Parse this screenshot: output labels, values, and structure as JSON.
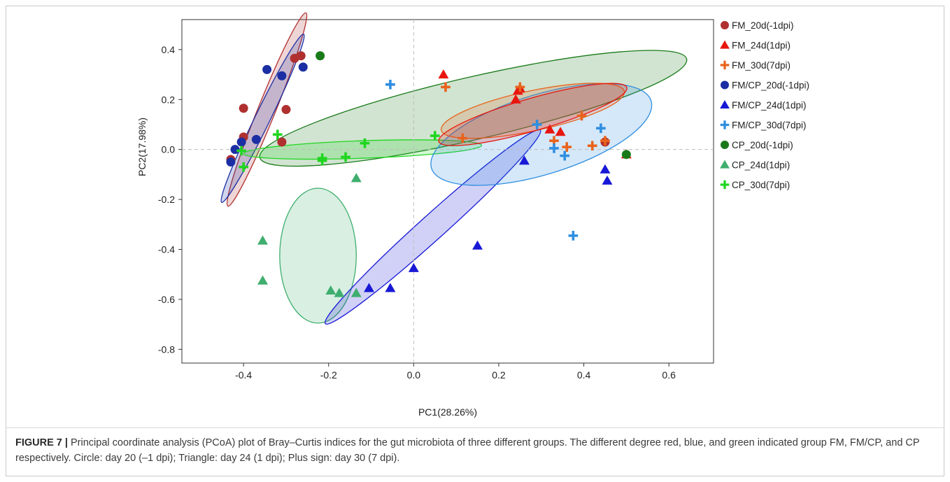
{
  "caption": {
    "label": "FIGURE 7 |",
    "text": " Principal coordinate analysis (PCoA) plot of Bray–Curtis indices for the gut microbiota of three different groups. The different degree red, blue, and green indicated group FM, FM/CP, and CP respectively. Circle: day 20 (–1 dpi); Triangle: day 24 (1 dpi); Plus sign: day 30 (7 dpi)."
  },
  "chart_data": {
    "type": "scatter",
    "xlabel": "PC1(28.26%)",
    "ylabel": "PC2(17.98%)",
    "xlim": [
      -0.545,
      0.705
    ],
    "ylim": [
      -0.855,
      0.52
    ],
    "xticks": [
      -0.4,
      -0.2,
      0.0,
      0.2,
      0.4,
      0.6
    ],
    "xtick_labels": [
      "-0.4",
      "-0.2",
      "0.0",
      "0.2",
      "0.4",
      "0.6"
    ],
    "yticks": [
      -0.8,
      -0.6,
      -0.4,
      -0.2,
      0.0,
      0.2,
      0.4
    ],
    "ytick_labels": [
      "-0.8",
      "-0.6",
      "-0.4",
      "-0.2",
      "0.0",
      "0.2",
      "0.4"
    ],
    "reference_lines": {
      "x": 0,
      "y": 0,
      "style": "dashed"
    },
    "grid": false,
    "legend_position": "right, outside plot",
    "series": [
      {
        "name": "FM_20d(-1dpi)",
        "marker": "circle",
        "color": "#b03030",
        "points": [
          [
            -0.43,
            -0.04
          ],
          [
            -0.4,
            0.05
          ],
          [
            -0.4,
            0.165
          ],
          [
            -0.31,
            0.03
          ],
          [
            -0.3,
            0.16
          ],
          [
            -0.28,
            0.365
          ],
          [
            -0.265,
            0.375
          ],
          [
            0.45,
            0.03
          ]
        ]
      },
      {
        "name": "FM_24d(1dpi)",
        "marker": "triangle",
        "color": "#e8160f",
        "points": [
          [
            0.07,
            0.3
          ],
          [
            0.24,
            0.2
          ],
          [
            0.245,
            0.235
          ],
          [
            0.25,
            0.245
          ],
          [
            0.32,
            0.08
          ],
          [
            0.345,
            0.07
          ],
          [
            0.5,
            -0.02
          ]
        ]
      },
      {
        "name": "FM_30d(7dpi)",
        "marker": "plus",
        "color": "#e8631c",
        "points": [
          [
            0.075,
            0.25
          ],
          [
            0.115,
            0.045
          ],
          [
            0.25,
            0.25
          ],
          [
            0.33,
            0.035
          ],
          [
            0.36,
            0.01
          ],
          [
            0.395,
            0.135
          ],
          [
            0.42,
            0.015
          ],
          [
            0.45,
            0.035
          ]
        ]
      },
      {
        "name": "FM/CP_20d(-1dpi)",
        "marker": "circle",
        "color": "#1b2ea3",
        "points": [
          [
            -0.43,
            -0.05
          ],
          [
            -0.42,
            0.0
          ],
          [
            -0.405,
            0.03
          ],
          [
            -0.37,
            0.04
          ],
          [
            -0.345,
            0.32
          ],
          [
            -0.31,
            0.295
          ],
          [
            -0.26,
            0.33
          ]
        ]
      },
      {
        "name": "FM/CP_24d(1dpi)",
        "marker": "triangle",
        "color": "#1818d6",
        "points": [
          [
            -0.105,
            -0.555
          ],
          [
            -0.055,
            -0.555
          ],
          [
            0.0,
            -0.475
          ],
          [
            0.15,
            -0.385
          ],
          [
            0.26,
            -0.045
          ],
          [
            0.45,
            -0.08
          ],
          [
            0.455,
            -0.125
          ]
        ]
      },
      {
        "name": "FM/CP_30d(7dpi)",
        "marker": "plus",
        "color": "#2f8ee0",
        "points": [
          [
            -0.055,
            0.26
          ],
          [
            0.29,
            0.1
          ],
          [
            0.33,
            0.005
          ],
          [
            0.355,
            -0.025
          ],
          [
            0.375,
            -0.345
          ],
          [
            0.44,
            0.085
          ]
        ]
      },
      {
        "name": "CP_20d(-1dpi)",
        "marker": "circle",
        "color": "#1a7a1a",
        "points": [
          [
            -0.22,
            0.375
          ],
          [
            0.5,
            -0.02
          ]
        ]
      },
      {
        "name": "CP_24d(1dpi)",
        "marker": "triangle",
        "color": "#3fae6e",
        "points": [
          [
            -0.355,
            -0.365
          ],
          [
            -0.355,
            -0.525
          ],
          [
            -0.195,
            -0.565
          ],
          [
            -0.175,
            -0.575
          ],
          [
            -0.135,
            -0.575
          ],
          [
            -0.135,
            -0.115
          ]
        ]
      },
      {
        "name": "CP_30d(7dpi)",
        "marker": "plus",
        "color": "#20d620",
        "points": [
          [
            -0.32,
            0.06
          ],
          [
            -0.405,
            -0.005
          ],
          [
            -0.4,
            -0.07
          ],
          [
            -0.215,
            -0.045
          ],
          [
            -0.215,
            -0.035
          ],
          [
            -0.16,
            -0.03
          ],
          [
            -0.115,
            0.025
          ],
          [
            0.05,
            0.055
          ]
        ]
      }
    ],
    "ellipses": [
      {
        "group": "FM_20d(-1dpi)",
        "color": "#b03030",
        "cx": -0.345,
        "cy": 0.16,
        "rx": 0.245,
        "ry": 0.035,
        "angle_deg": -68
      },
      {
        "group": "FM/CP_20d(-1dpi)",
        "color": "#1b2ea3",
        "cx": -0.355,
        "cy": 0.125,
        "rx": 0.22,
        "ry": 0.03,
        "angle_deg": -64
      },
      {
        "group": "CP_20d(-1dpi)",
        "color": "#1a7a1a",
        "cx": 0.14,
        "cy": 0.165,
        "rx": 0.515,
        "ry": 0.125,
        "angle_deg": -13
      },
      {
        "group": "CP_30d(7dpi)",
        "color": "#20d620",
        "cx": -0.12,
        "cy": 0.0,
        "rx": 0.28,
        "ry": 0.035,
        "angle_deg": -2
      },
      {
        "group": "CP_24d(1dpi)",
        "color": "#3fae6e",
        "cx": -0.225,
        "cy": -0.425,
        "rx": 0.09,
        "ry": 0.27,
        "angle_deg": 0
      },
      {
        "group": "FM/CP_24d(1dpi)",
        "color": "#1818d6",
        "cx": 0.045,
        "cy": -0.31,
        "rx": 0.34,
        "ry": 0.05,
        "angle_deg": -42
      },
      {
        "group": "FM/CP_30d(7dpi)",
        "color": "#2f8ee0",
        "cx": 0.3,
        "cy": 0.06,
        "rx": 0.27,
        "ry": 0.16,
        "angle_deg": -17
      },
      {
        "group": "FM_30d(7dpi)",
        "color": "#e8631c",
        "cx": 0.28,
        "cy": 0.155,
        "rx": 0.22,
        "ry": 0.08,
        "angle_deg": -12
      },
      {
        "group": "FM_24d(1dpi)",
        "color": "#e8160f",
        "cx": 0.28,
        "cy": 0.14,
        "rx": 0.23,
        "ry": 0.065,
        "angle_deg": -16
      }
    ]
  }
}
